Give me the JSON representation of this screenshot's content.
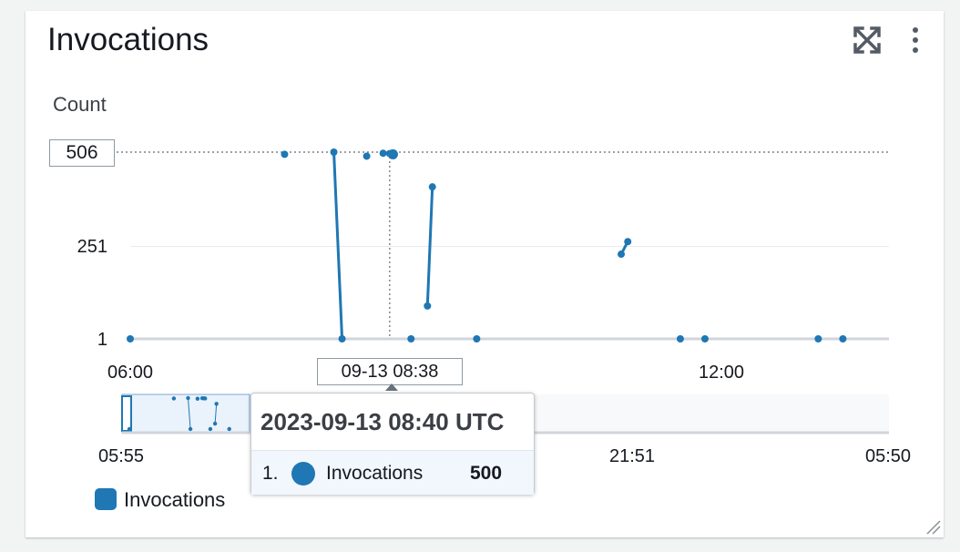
{
  "widget": {
    "title": "Invocations",
    "expand_icon": "expand-icon",
    "more_icon": "more-vertical-icon",
    "resize_icon": "resize-handle-icon"
  },
  "chart_data": {
    "type": "line",
    "ylabel": "Count",
    "yticks": [
      "1",
      "251"
    ],
    "xticks": [
      "06:00",
      "12:00"
    ],
    "ylim": [
      1,
      506
    ],
    "highlight": {
      "y_value": "506",
      "x_value": "09-13 08:38"
    },
    "series": [
      {
        "name": "Invocations",
        "color": "#1f77b4",
        "segments": [
          [
            {
              "x": "06:00",
              "y": 1
            }
          ],
          [
            {
              "x": "07:34",
              "y": 500
            }
          ],
          [
            {
              "x": "08:04",
              "y": 506
            },
            {
              "x": "08:09",
              "y": 1
            }
          ],
          [
            {
              "x": "08:24",
              "y": 495
            }
          ],
          [
            {
              "x": "08:34",
              "y": 503
            }
          ],
          [
            {
              "x": "08:38",
              "y": 502
            }
          ],
          [
            {
              "x": "08:40",
              "y": 500
            }
          ],
          [
            {
              "x": "08:51",
              "y": 1
            }
          ],
          [
            {
              "x": "09:01",
              "y": 90
            },
            {
              "x": "09:04",
              "y": 412
            }
          ],
          [
            {
              "x": "09:31",
              "y": 1
            }
          ],
          [
            {
              "x": "10:59",
              "y": 230
            },
            {
              "x": "11:03",
              "y": 264
            }
          ],
          [
            {
              "x": "11:35",
              "y": 1
            }
          ],
          [
            {
              "x": "11:50",
              "y": 1
            }
          ],
          [
            {
              "x": "12:59",
              "y": 1
            }
          ],
          [
            {
              "x": "13:14",
              "y": 1
            }
          ]
        ]
      }
    ],
    "grid": true,
    "legend_position": "bottom-left"
  },
  "navigator": {
    "ticks": [
      "05:55",
      "21:51",
      "05:50"
    ]
  },
  "tooltip": {
    "title": "2023-09-13 08:40 UTC",
    "index": "1.",
    "series_name": "Invocations",
    "value": "500"
  },
  "legend": {
    "items": [
      {
        "label": "Invocations",
        "color": "#1f77b4"
      }
    ]
  }
}
